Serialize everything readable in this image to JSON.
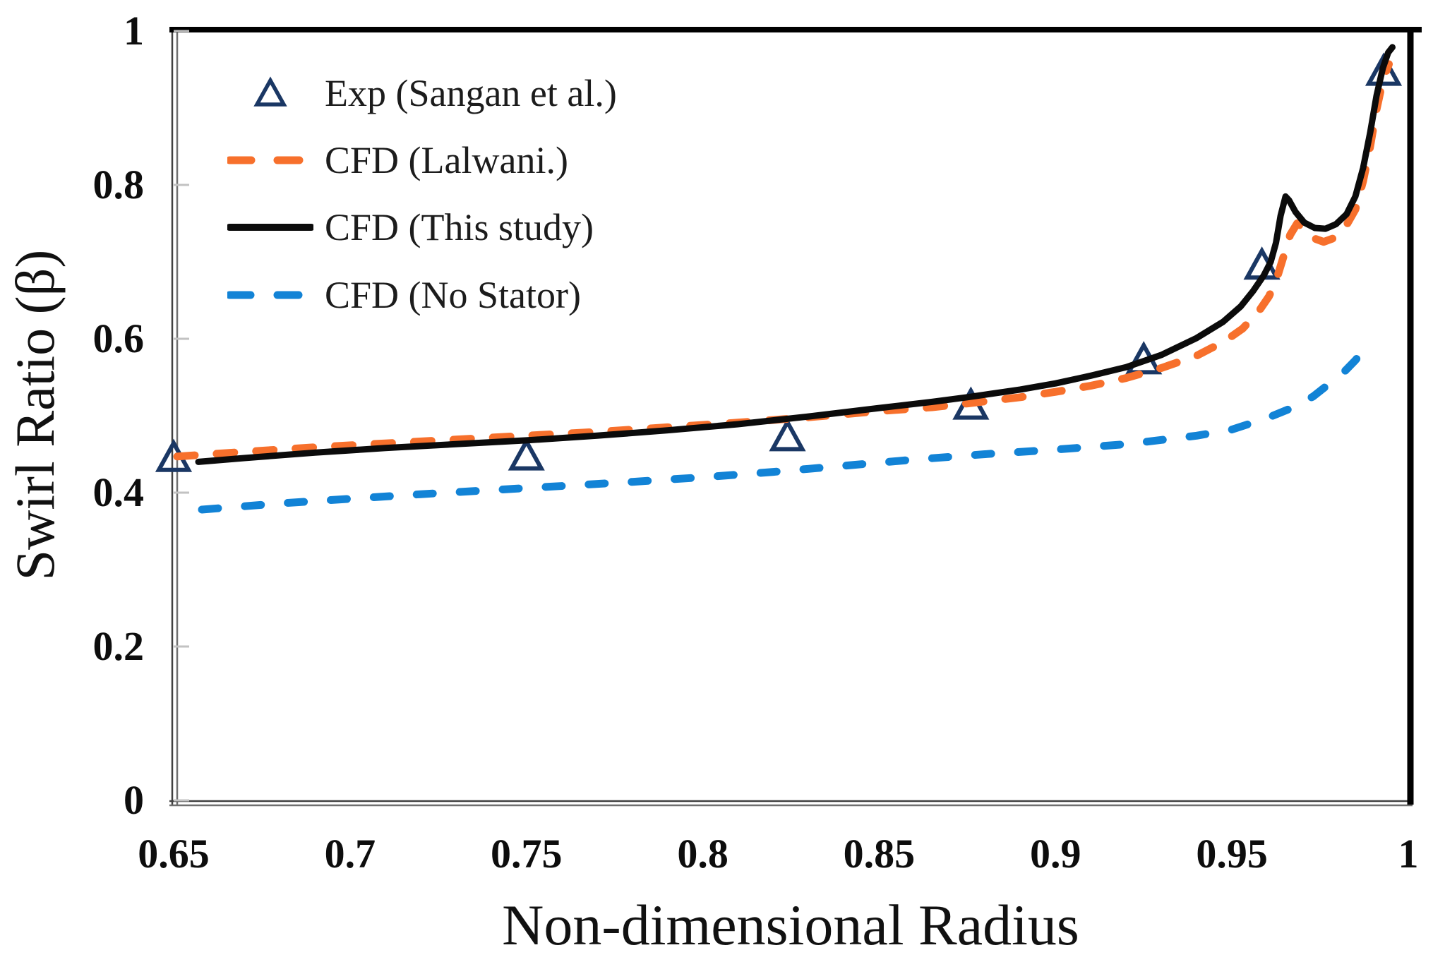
{
  "figure": {
    "x_axis_title": "Non-dimensional Radius",
    "y_axis_title": "Swirl Ratio (β)"
  },
  "legend": {
    "items": [
      {
        "id": "exp-sangan",
        "label": "Exp (Sangan et al.)",
        "symbol": "triangle-open",
        "color": "#1A3764"
      },
      {
        "id": "cfd-lalwani",
        "label": "CFD (Lalwani.)",
        "symbol": "dashed-line",
        "color": "#F7702C",
        "legend_dash": "31 37"
      },
      {
        "id": "cfd-this-study",
        "label": "CFD (This study)",
        "symbol": "solid-line",
        "color": "#0B0B0B"
      },
      {
        "id": "cfd-no-stator",
        "label": "CFD (No Stator)",
        "symbol": "dashed-line",
        "color": "#1283D6",
        "legend_dash": "30 38"
      }
    ]
  },
  "chart_data": {
    "type": "line",
    "title": "",
    "xlabel": "Non-dimensional Radius",
    "ylabel": "Swirl Ratio (β)",
    "xlim": [
      0.65,
      1.0
    ],
    "ylim": [
      0,
      1.0
    ],
    "x_tick_values": [
      0.65,
      0.7,
      0.75,
      0.8,
      0.85,
      0.9,
      0.95,
      1
    ],
    "x_tick_labels": [
      "0.65",
      "0.7",
      "0.75",
      "0.8",
      "0.85",
      "0.9",
      "0.95",
      "1"
    ],
    "y_tick_values": [
      0,
      0.2,
      0.4,
      0.6,
      0.8,
      1
    ],
    "y_tick_labels": [
      "0",
      "0.2",
      "0.4",
      "0.6",
      "0.8",
      "1"
    ],
    "grid": false,
    "legend_position": "inside-top-left",
    "series": [
      {
        "id": "exp-sangan",
        "name": "Exp (Sangan et al.)",
        "type": "scatter",
        "marker": "triangle-open",
        "color": "#1A3764",
        "points": [
          [
            0.65,
            0.447
          ],
          [
            0.75,
            0.449
          ],
          [
            0.824,
            0.474
          ],
          [
            0.876,
            0.515
          ],
          [
            0.925,
            0.574
          ],
          [
            0.9585,
            0.697
          ],
          [
            0.993,
            0.949
          ]
        ]
      },
      {
        "id": "cfd-lalwani",
        "name": "CFD (Lalwani.)",
        "type": "line",
        "dash": "25 31",
        "width": 11,
        "color": "#F7702C",
        "points": [
          [
            0.651,
            0.447
          ],
          [
            0.67,
            0.453
          ],
          [
            0.69,
            0.459
          ],
          [
            0.71,
            0.464
          ],
          [
            0.73,
            0.469
          ],
          [
            0.75,
            0.474
          ],
          [
            0.77,
            0.479
          ],
          [
            0.79,
            0.485
          ],
          [
            0.81,
            0.491
          ],
          [
            0.83,
            0.498
          ],
          [
            0.85,
            0.506
          ],
          [
            0.865,
            0.511
          ],
          [
            0.875,
            0.516
          ],
          [
            0.89,
            0.524
          ],
          [
            0.9,
            0.531
          ],
          [
            0.91,
            0.539
          ],
          [
            0.92,
            0.549
          ],
          [
            0.93,
            0.562
          ],
          [
            0.94,
            0.578
          ],
          [
            0.948,
            0.597
          ],
          [
            0.953,
            0.613
          ],
          [
            0.9575,
            0.635
          ],
          [
            0.9605,
            0.655
          ],
          [
            0.9625,
            0.675
          ],
          [
            0.9645,
            0.705
          ],
          [
            0.9665,
            0.735
          ],
          [
            0.9685,
            0.75
          ],
          [
            0.9705,
            0.743
          ],
          [
            0.973,
            0.731
          ],
          [
            0.976,
            0.726
          ],
          [
            0.979,
            0.731
          ],
          [
            0.982,
            0.744
          ],
          [
            0.985,
            0.768
          ],
          [
            0.9872,
            0.805
          ],
          [
            0.9892,
            0.85
          ],
          [
            0.991,
            0.898
          ],
          [
            0.9928,
            0.936
          ],
          [
            0.9945,
            0.957
          ]
        ]
      },
      {
        "id": "cfd-this-study",
        "name": "CFD (This study)",
        "type": "line",
        "dash": null,
        "width": 9,
        "color": "#0B0B0B",
        "points": [
          [
            0.657,
            0.44
          ],
          [
            0.67,
            0.445
          ],
          [
            0.69,
            0.452
          ],
          [
            0.71,
            0.458
          ],
          [
            0.73,
            0.463
          ],
          [
            0.75,
            0.468
          ],
          [
            0.77,
            0.474
          ],
          [
            0.79,
            0.481
          ],
          [
            0.81,
            0.489
          ],
          [
            0.83,
            0.499
          ],
          [
            0.85,
            0.51
          ],
          [
            0.865,
            0.518
          ],
          [
            0.875,
            0.524
          ],
          [
            0.89,
            0.534
          ],
          [
            0.9,
            0.542
          ],
          [
            0.91,
            0.552
          ],
          [
            0.92,
            0.563
          ],
          [
            0.93,
            0.579
          ],
          [
            0.94,
            0.601
          ],
          [
            0.9475,
            0.622
          ],
          [
            0.9525,
            0.642
          ],
          [
            0.956,
            0.662
          ],
          [
            0.959,
            0.682
          ],
          [
            0.961,
            0.7
          ],
          [
            0.9625,
            0.725
          ],
          [
            0.9638,
            0.76
          ],
          [
            0.9652,
            0.785
          ],
          [
            0.9662,
            0.78
          ],
          [
            0.968,
            0.765
          ],
          [
            0.9705,
            0.751
          ],
          [
            0.9735,
            0.744
          ],
          [
            0.9765,
            0.743
          ],
          [
            0.9795,
            0.749
          ],
          [
            0.9825,
            0.762
          ],
          [
            0.985,
            0.785
          ],
          [
            0.9872,
            0.822
          ],
          [
            0.9892,
            0.868
          ],
          [
            0.991,
            0.916
          ],
          [
            0.9928,
            0.952
          ],
          [
            0.9943,
            0.972
          ],
          [
            0.9955,
            0.979
          ]
        ]
      },
      {
        "id": "cfd-no-stator",
        "name": "CFD (No Stator)",
        "type": "line",
        "dash": "23 38",
        "width": 11,
        "color": "#1283D6",
        "points": [
          [
            0.658,
            0.378
          ],
          [
            0.68,
            0.386
          ],
          [
            0.7,
            0.392
          ],
          [
            0.72,
            0.398
          ],
          [
            0.75,
            0.406
          ],
          [
            0.78,
            0.414
          ],
          [
            0.8,
            0.42
          ],
          [
            0.82,
            0.427
          ],
          [
            0.84,
            0.435
          ],
          [
            0.86,
            0.443
          ],
          [
            0.88,
            0.45
          ],
          [
            0.9,
            0.456
          ],
          [
            0.92,
            0.463
          ],
          [
            0.94,
            0.474
          ],
          [
            0.95,
            0.482
          ],
          [
            0.96,
            0.497
          ],
          [
            0.9675,
            0.511
          ],
          [
            0.973,
            0.525
          ],
          [
            0.978,
            0.543
          ],
          [
            0.982,
            0.558
          ],
          [
            0.985,
            0.572
          ],
          [
            0.987,
            0.583
          ]
        ]
      }
    ]
  },
  "colors": {
    "exp_marker": "#1A3764",
    "cfd_lalwani": "#F7702C",
    "cfd_this_study": "#0B0B0B",
    "cfd_no_stator": "#1283D6",
    "frame_black": "#000000",
    "frame_gray": "#6F6F6F",
    "axis_dark": "#404040",
    "tick_gray": "#C2C2C2",
    "background": "#FFFFFF"
  }
}
